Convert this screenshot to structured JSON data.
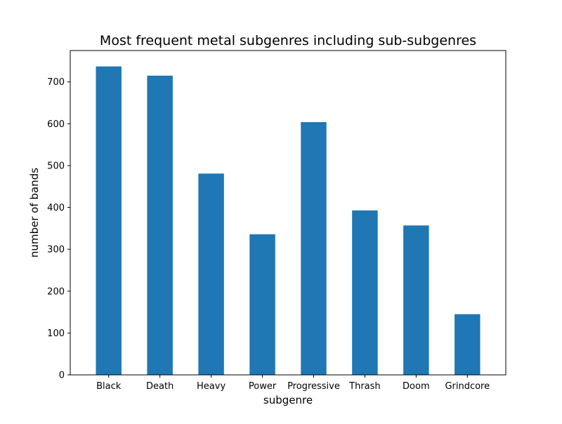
{
  "chart_data": {
    "type": "bar",
    "title": "Most frequent metal subgenres including sub-subgenres",
    "xlabel": "subgenre",
    "ylabel": "number of bands",
    "categories": [
      "Black",
      "Death",
      "Heavy",
      "Power",
      "Progressive",
      "Thrash",
      "Doom",
      "Grindcore"
    ],
    "values": [
      737,
      715,
      481,
      336,
      604,
      393,
      357,
      145
    ],
    "ylim": [
      0,
      775
    ],
    "yticks": [
      0,
      100,
      200,
      300,
      400,
      500,
      600,
      700
    ],
    "grid": false,
    "bar_color": "#1f77b4"
  }
}
